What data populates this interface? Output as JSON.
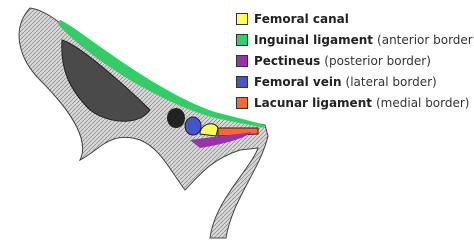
{
  "legend": {
    "items": [
      {
        "label": "Femoral canal",
        "description": null,
        "color": "#ffff55"
      },
      {
        "label": "Inguinal ligament",
        "description": "(anterior border)",
        "color": "#33cc66"
      },
      {
        "label": "Pectineus",
        "description": "(posterior border)",
        "color": "#9933aa"
      },
      {
        "label": "Femoral vein",
        "description": "(lateral border)",
        "color": "#4455cc"
      },
      {
        "label": "Lacunar ligament",
        "description": "(medial border)",
        "color": "#ff6633"
      }
    ]
  }
}
